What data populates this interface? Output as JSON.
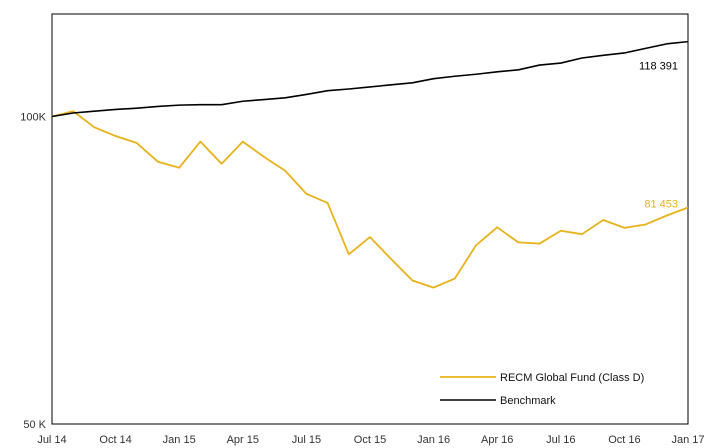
{
  "chart_data": {
    "type": "line",
    "title": "",
    "xlabel": "",
    "ylabel": "",
    "y_scale": "log",
    "ylim": [
      50000,
      126000
    ],
    "xlim": [
      "2014-07-01",
      "2017-01-01"
    ],
    "y_ticks": [
      {
        "value": 100000,
        "label": "100K"
      },
      {
        "value": 50000,
        "label": "50 K"
      }
    ],
    "x_ticks": [
      "Jul 14",
      "Oct 14",
      "Jan 15",
      "Apr 15",
      "Jul 15",
      "Oct 15",
      "Jan 16",
      "Apr 16",
      "Jul 16",
      "Oct 16",
      "Jan 17"
    ],
    "grid": false,
    "legend_position": "bottom-right",
    "series": [
      {
        "name": "RECM Global Fund (Class D)",
        "color": "#E8B21A",
        "end_label": "81 453",
        "points": [
          [
            "2014-07-01",
            100000
          ],
          [
            "2014-08-01",
            101200
          ],
          [
            "2014-09-01",
            97600
          ],
          [
            "2014-10-01",
            95700
          ],
          [
            "2014-11-01",
            94200
          ],
          [
            "2014-12-01",
            90300
          ],
          [
            "2015-01-01",
            89100
          ],
          [
            "2015-02-01",
            94500
          ],
          [
            "2015-03-01",
            89900
          ],
          [
            "2015-04-01",
            94500
          ],
          [
            "2015-05-01",
            91300
          ],
          [
            "2015-06-01",
            88500
          ],
          [
            "2015-07-01",
            84000
          ],
          [
            "2015-08-01",
            82300
          ],
          [
            "2015-09-01",
            73300
          ],
          [
            "2015-10-01",
            76200
          ],
          [
            "2015-11-01",
            72500
          ],
          [
            "2015-12-01",
            69100
          ],
          [
            "2016-01-01",
            68000
          ],
          [
            "2016-02-01",
            69400
          ],
          [
            "2016-03-01",
            74800
          ],
          [
            "2016-04-01",
            77900
          ],
          [
            "2016-05-01",
            75300
          ],
          [
            "2016-06-01",
            75100
          ],
          [
            "2016-07-01",
            77300
          ],
          [
            "2016-08-01",
            76700
          ],
          [
            "2016-09-01",
            79200
          ],
          [
            "2016-10-01",
            77800
          ],
          [
            "2016-11-01",
            78400
          ],
          [
            "2016-12-01",
            80000
          ],
          [
            "2017-01-01",
            81453
          ]
        ]
      },
      {
        "name": "Benchmark",
        "color": "#000000",
        "end_label": "118 391",
        "points": [
          [
            "2014-07-01",
            100000
          ],
          [
            "2014-08-01",
            100800
          ],
          [
            "2014-09-01",
            101200
          ],
          [
            "2014-10-01",
            101600
          ],
          [
            "2014-11-01",
            101900
          ],
          [
            "2014-12-01",
            102300
          ],
          [
            "2015-01-01",
            102600
          ],
          [
            "2015-02-01",
            102700
          ],
          [
            "2015-03-01",
            102700
          ],
          [
            "2015-04-01",
            103500
          ],
          [
            "2015-05-01",
            103900
          ],
          [
            "2015-06-01",
            104300
          ],
          [
            "2015-07-01",
            105100
          ],
          [
            "2015-08-01",
            106000
          ],
          [
            "2015-09-01",
            106400
          ],
          [
            "2015-10-01",
            106900
          ],
          [
            "2015-11-01",
            107400
          ],
          [
            "2015-12-01",
            107900
          ],
          [
            "2016-01-01",
            108900
          ],
          [
            "2016-02-01",
            109500
          ],
          [
            "2016-03-01",
            110000
          ],
          [
            "2016-04-01",
            110600
          ],
          [
            "2016-05-01",
            111100
          ],
          [
            "2016-06-01",
            112300
          ],
          [
            "2016-07-01",
            112800
          ],
          [
            "2016-08-01",
            114100
          ],
          [
            "2016-09-01",
            114800
          ],
          [
            "2016-10-01",
            115400
          ],
          [
            "2016-11-01",
            116600
          ],
          [
            "2016-12-01",
            117800
          ],
          [
            "2017-01-01",
            118391
          ]
        ]
      }
    ]
  }
}
